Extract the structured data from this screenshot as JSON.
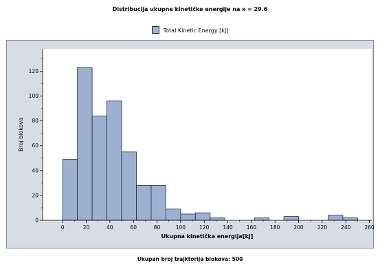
{
  "chart_data": {
    "type": "bar",
    "title": "Distribucija ukupne kinetičke energije na x = 29.6",
    "legend": [
      "Total Kinetic Energy [kJ]"
    ],
    "xlabel": "Ukupna kinetička energija[kJ]",
    "ylabel": "Broj blokova",
    "footer": "Ukupan broj trajktorija blokova:  500",
    "xlim": [
      -17,
      262
    ],
    "ylim": [
      0,
      138
    ],
    "x_ticks": [
      0,
      20,
      40,
      60,
      80,
      100,
      120,
      140,
      160,
      180,
      200,
      220,
      240,
      260
    ],
    "y_ticks": [
      0,
      20,
      40,
      60,
      80,
      100,
      120
    ],
    "bin_width": 12.5,
    "bins": [
      {
        "start": 0,
        "count": 49
      },
      {
        "start": 12.5,
        "count": 123
      },
      {
        "start": 25,
        "count": 84
      },
      {
        "start": 37.5,
        "count": 96
      },
      {
        "start": 50,
        "count": 55
      },
      {
        "start": 62.5,
        "count": 28
      },
      {
        "start": 75,
        "count": 28
      },
      {
        "start": 87.5,
        "count": 9
      },
      {
        "start": 100,
        "count": 5
      },
      {
        "start": 112.5,
        "count": 6
      },
      {
        "start": 125,
        "count": 2
      },
      {
        "start": 162.5,
        "count": 2
      },
      {
        "start": 187.5,
        "count": 3
      },
      {
        "start": 225,
        "count": 4
      },
      {
        "start": 237.5,
        "count": 2
      }
    ],
    "bar_color": "#9db0cf",
    "bar_edge_color": "#1c2a45",
    "background_color": "#d7dce6",
    "plot_area_color": "#ffffff",
    "grid": false,
    "legend_position": "top-center"
  }
}
